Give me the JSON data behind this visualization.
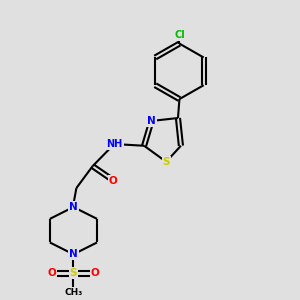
{
  "bg_color": "#e0e0e0",
  "atom_colors": {
    "C": "#000000",
    "N": "#0000ff",
    "O": "#ff0000",
    "S": "#cccc00",
    "Cl": "#00bb00",
    "H": "#888888"
  },
  "bond_color": "#000000",
  "figsize": [
    3.0,
    3.0
  ],
  "dpi": 100,
  "xlim": [
    0,
    10
  ],
  "ylim": [
    0,
    10
  ]
}
